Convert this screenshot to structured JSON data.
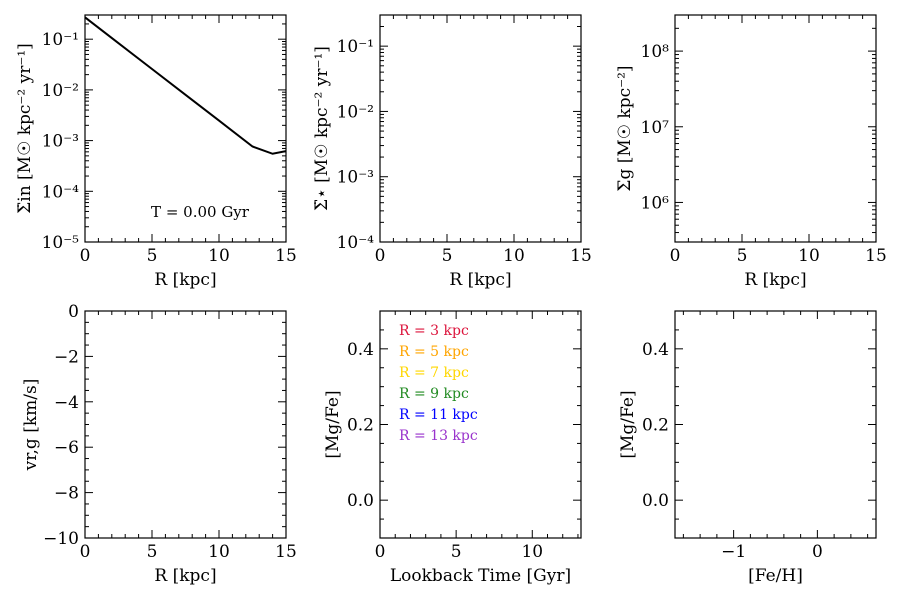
{
  "chart_data": [
    {
      "id": "p1",
      "type": "line",
      "xlabel": "R [kpc]",
      "ylabel": "Σ̇in [M☉ kpc⁻² yr⁻¹]",
      "xlim": [
        0,
        15
      ],
      "ylim": [
        1e-05,
        0.3
      ],
      "yscale": "log",
      "xticks": [
        0,
        5,
        10,
        15
      ],
      "xticklabels": [
        "0",
        "5",
        "10",
        "15"
      ],
      "yticks": [
        1e-05,
        0.0001,
        0.001,
        0.01,
        0.1
      ],
      "yticklabels": [
        "10⁻⁵",
        "10⁻⁴",
        "10⁻³",
        "10⁻²",
        "10⁻¹"
      ],
      "annotation": "T = 0.00 Gyr",
      "series": [
        {
          "x": [
            0,
            2.5,
            5,
            7.5,
            10,
            12.5,
            14,
            15
          ],
          "y": [
            0.27,
            0.0835,
            0.0258,
            0.008,
            0.00248,
            0.000765,
            0.00055,
            0.00062
          ],
          "color": "#000000"
        }
      ]
    },
    {
      "id": "p2",
      "type": "line",
      "xlabel": "R [kpc]",
      "ylabel": "Σ̇⋆ [M☉ kpc⁻² yr⁻¹]",
      "xlim": [
        0,
        15
      ],
      "ylim": [
        0.0001,
        0.3
      ],
      "yscale": "log",
      "xticks": [
        0,
        5,
        10,
        15
      ],
      "xticklabels": [
        "0",
        "5",
        "10",
        "15"
      ],
      "yticks": [
        0.0001,
        0.001,
        0.01,
        0.1
      ],
      "yticklabels": [
        "10⁻⁴",
        "10⁻³",
        "10⁻²",
        "10⁻¹"
      ],
      "series": []
    },
    {
      "id": "p3",
      "type": "line",
      "xlabel": "R [kpc]",
      "ylabel": "Σg [M☉ kpc⁻²]",
      "xlim": [
        0,
        15
      ],
      "ylim": [
        300000.0,
        300000000.0
      ],
      "yscale": "log",
      "xticks": [
        0,
        5,
        10,
        15
      ],
      "xticklabels": [
        "0",
        "5",
        "10",
        "15"
      ],
      "yticks": [
        1000000.0,
        10000000.0,
        100000000.0
      ],
      "yticklabels": [
        "10⁶",
        "10⁷",
        "10⁸"
      ],
      "series": []
    },
    {
      "id": "p4",
      "type": "line",
      "xlabel": "R [kpc]",
      "ylabel": "vr,g [km/s]",
      "xlim": [
        0,
        15
      ],
      "ylim": [
        -10,
        0
      ],
      "yscale": "linear",
      "xticks": [
        0,
        5,
        10,
        15
      ],
      "xticklabels": [
        "0",
        "5",
        "10",
        "15"
      ],
      "yticks": [
        -10,
        -8,
        -6,
        -4,
        -2,
        0
      ],
      "yticklabels": [
        "−10",
        "−8",
        "−6",
        "−4",
        "−2",
        "0"
      ],
      "series": []
    },
    {
      "id": "p5",
      "type": "line",
      "xlabel": "Lookback Time [Gyr]",
      "ylabel": "[Mg/Fe]",
      "xlim": [
        0,
        13.2
      ],
      "ylim": [
        -0.1,
        0.5
      ],
      "yscale": "linear",
      "xticks": [
        0,
        5,
        10
      ],
      "xticklabels": [
        "0",
        "5",
        "10"
      ],
      "yticks": [
        0.0,
        0.2,
        0.4
      ],
      "yticklabels": [
        "0.0",
        "0.2",
        "0.4"
      ],
      "legend": [
        {
          "label": "R = 3 kpc",
          "color": "#dc143c"
        },
        {
          "label": "R = 5 kpc",
          "color": "#ffa500"
        },
        {
          "label": "R = 7 kpc",
          "color": "#ffd700"
        },
        {
          "label": "R = 9 kpc",
          "color": "#228b22"
        },
        {
          "label": "R = 11 kpc",
          "color": "#0000ff"
        },
        {
          "label": "R = 13 kpc",
          "color": "#9932cc"
        }
      ],
      "series": []
    },
    {
      "id": "p6",
      "type": "line",
      "xlabel": "[Fe/H]",
      "ylabel": "[Mg/Fe]",
      "xlim": [
        -1.7,
        0.7
      ],
      "ylim": [
        -0.1,
        0.5
      ],
      "yscale": "linear",
      "xticks": [
        -1,
        0
      ],
      "xticklabels": [
        "−1",
        "0"
      ],
      "yticks": [
        0.0,
        0.2,
        0.4
      ],
      "yticklabels": [
        "0.0",
        "0.2",
        "0.4"
      ],
      "series": []
    }
  ]
}
